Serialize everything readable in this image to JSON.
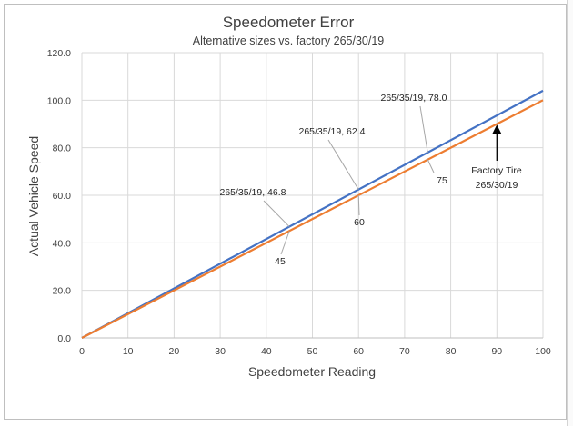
{
  "chart_data": {
    "type": "line",
    "title": "Speedometer Error",
    "subtitle": "Alternative sizes vs. factory 265/30/19",
    "xlabel": "Speedometer Reading",
    "ylabel": "Actual Vehicle Speed",
    "xlim": [
      0,
      100
    ],
    "ylim": [
      0,
      120
    ],
    "x_ticks": [
      "0",
      "10",
      "20",
      "30",
      "40",
      "50",
      "60",
      "70",
      "80",
      "90",
      "100"
    ],
    "y_ticks": [
      "0.0",
      "20.0",
      "40.0",
      "60.0",
      "80.0",
      "100.0",
      "120.0"
    ],
    "grid": true,
    "series": [
      {
        "color": "#4472c4",
        "x": [
          0,
          100
        ],
        "y": [
          0,
          104
        ]
      },
      {
        "color": "#ed7d31",
        "x": [
          0,
          100
        ],
        "y": [
          0,
          100
        ]
      }
    ],
    "annotations": [
      {
        "text": "265/35/19, 46.8",
        "x": 45,
        "y": 46.8
      },
      {
        "text": "265/35/19, 62.4",
        "x": 60,
        "y": 62.4
      },
      {
        "text": "265/35/19, 78.0",
        "x": 75,
        "y": 78.0
      },
      {
        "text": "45",
        "x": 45,
        "y": 45
      },
      {
        "text": "60",
        "x": 60,
        "y": 60
      },
      {
        "text": "75",
        "x": 75,
        "y": 75
      },
      {
        "text": "Factory Tire",
        "x": 90,
        "y": 90
      },
      {
        "text": "265/30/19",
        "x": 90,
        "y": 90
      }
    ]
  }
}
